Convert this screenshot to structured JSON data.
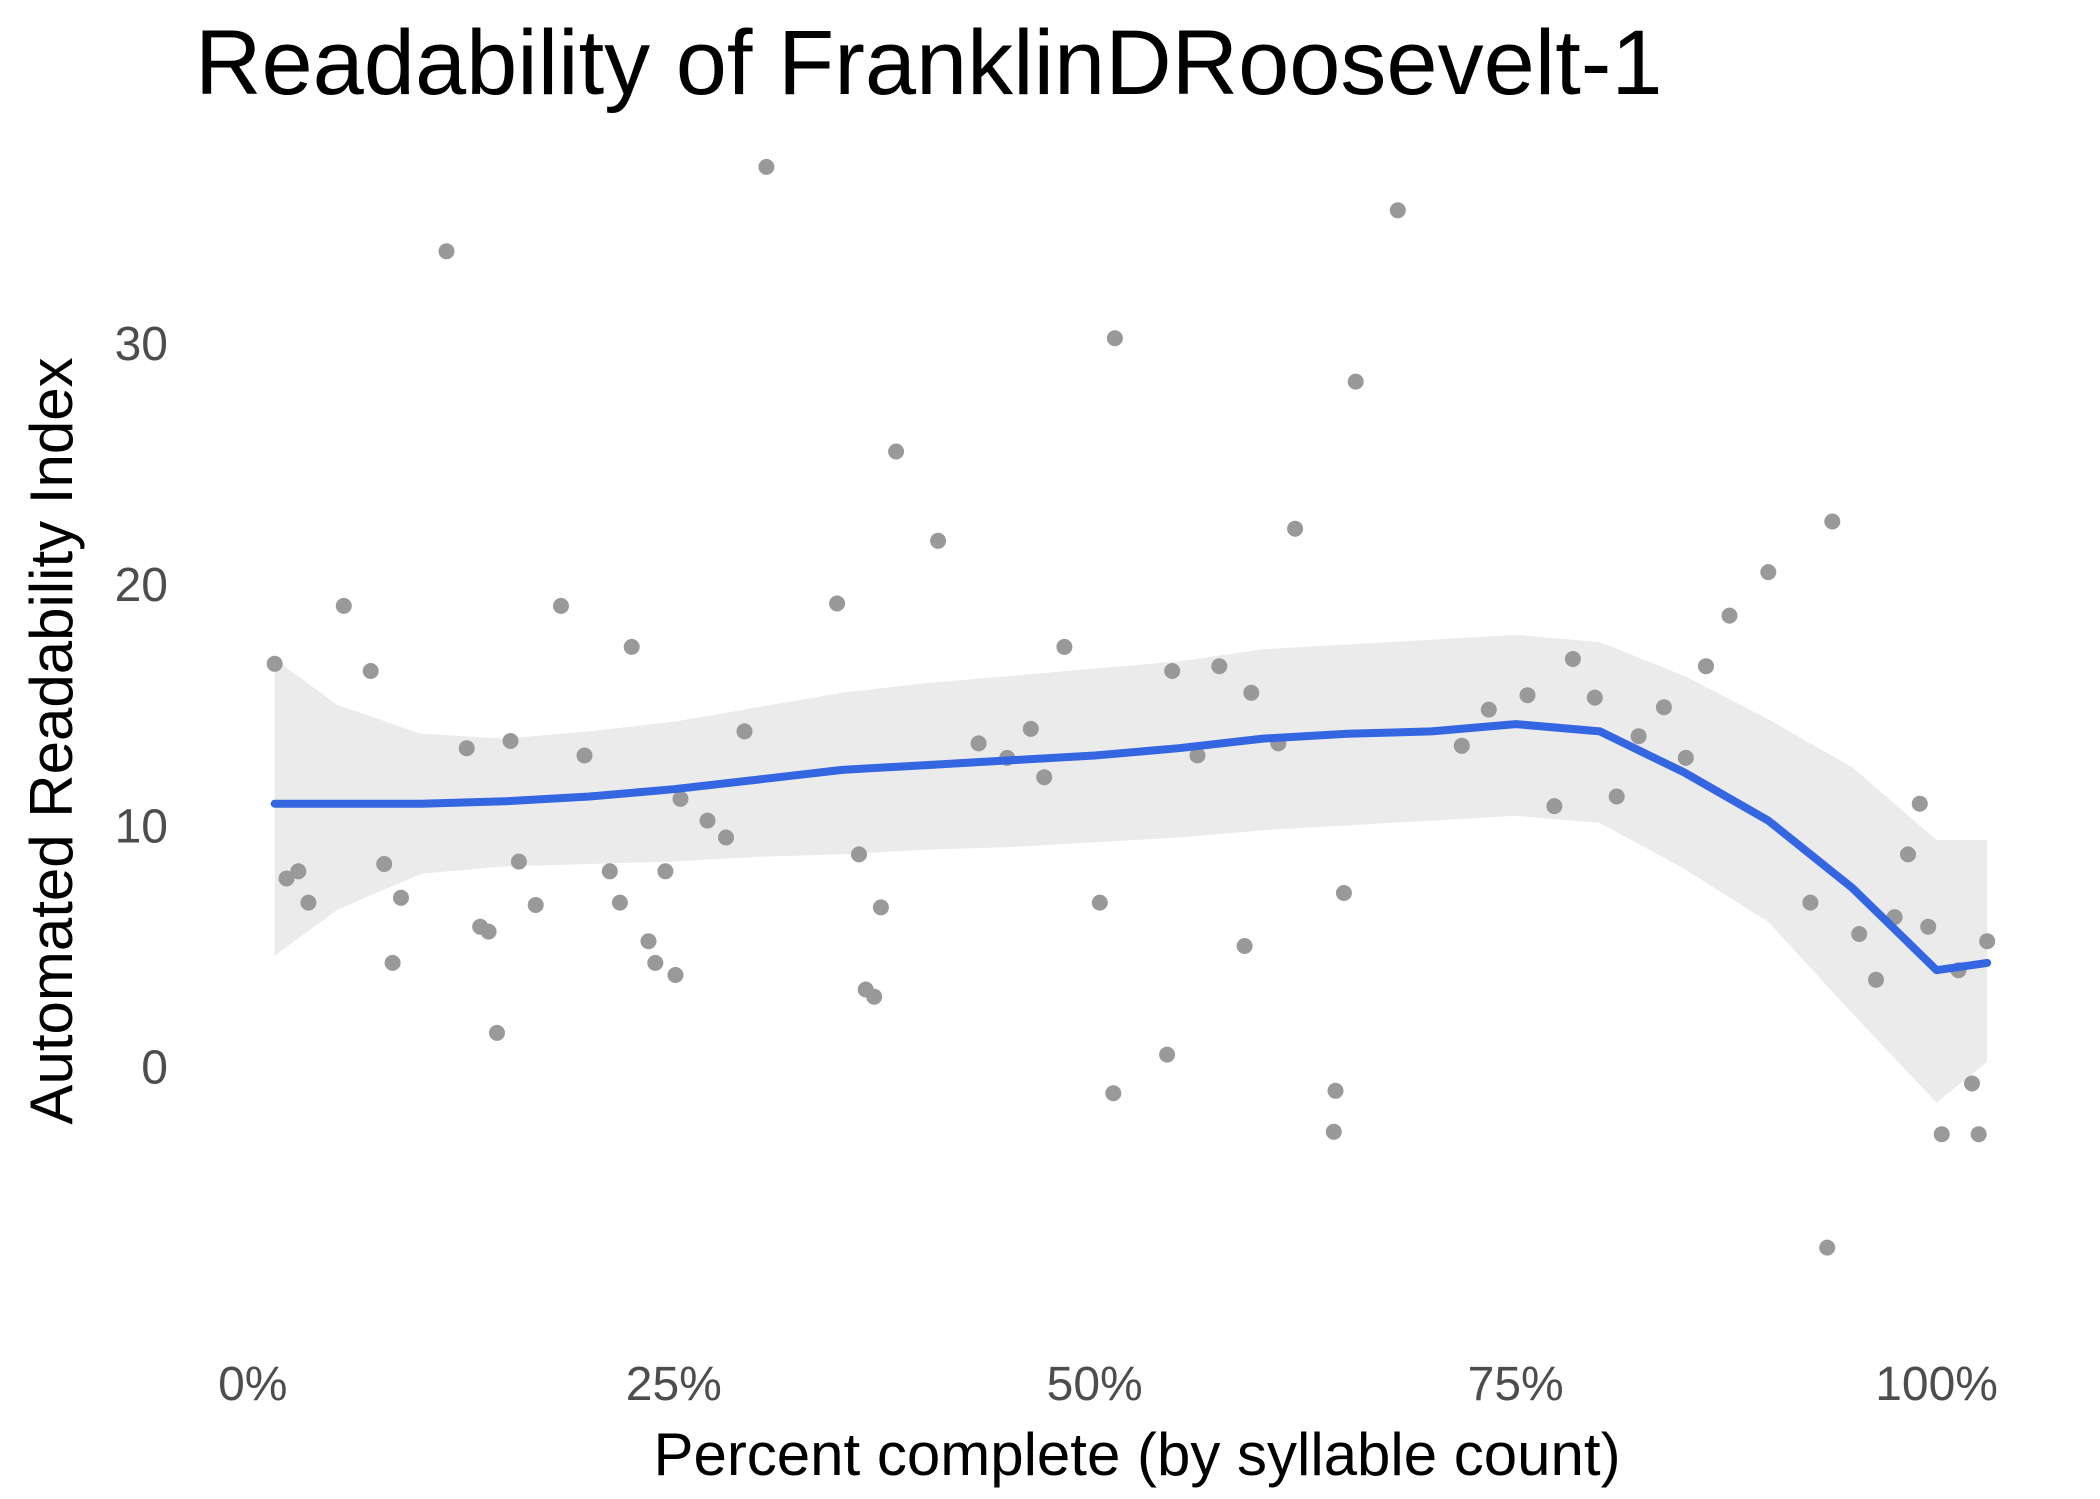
{
  "chart_data": {
    "type": "scatter",
    "title": "Readability of FranklinDRoosevelt-1",
    "xlabel": "Percent complete (by syllable count)",
    "ylabel": "Automated Readability Index",
    "xlim": [
      -0.01,
      1.04
    ],
    "ylim": [
      -11,
      38
    ],
    "grid": false,
    "x_ticks": [
      {
        "value": 0,
        "label": "0%"
      },
      {
        "value": 0.25,
        "label": "25%"
      },
      {
        "value": 0.5,
        "label": "50%"
      },
      {
        "value": 0.75,
        "label": "75%"
      },
      {
        "value": 1,
        "label": "100%"
      }
    ],
    "y_ticks": [
      {
        "value": 0,
        "label": "0"
      },
      {
        "value": 10,
        "label": "10"
      },
      {
        "value": 20,
        "label": "20"
      },
      {
        "value": 30,
        "label": "30"
      }
    ],
    "colors": {
      "points": "#999999",
      "smooth_line": "#3366e0",
      "confidence_band": "#ebebeb"
    },
    "series": [
      {
        "type": "scatter",
        "x": [
          0.013,
          0.02,
          0.027,
          0.033,
          0.054,
          0.07,
          0.078,
          0.083,
          0.088,
          0.115,
          0.127,
          0.135,
          0.14,
          0.145,
          0.153,
          0.158,
          0.168,
          0.183,
          0.197,
          0.212,
          0.218,
          0.225,
          0.235,
          0.239,
          0.245,
          0.251,
          0.254,
          0.27,
          0.281,
          0.292,
          0.305,
          0.347,
          0.36,
          0.364,
          0.369,
          0.373,
          0.382,
          0.407,
          0.431,
          0.448,
          0.462,
          0.47,
          0.482,
          0.503,
          0.511,
          0.512,
          0.543,
          0.546,
          0.561,
          0.574,
          0.589,
          0.593,
          0.609,
          0.619,
          0.642,
          0.643,
          0.648,
          0.655,
          0.68,
          0.718,
          0.734,
          0.757,
          0.773,
          0.784,
          0.797,
          0.81,
          0.823,
          0.838,
          0.851,
          0.863,
          0.877,
          0.9,
          0.925,
          0.935,
          0.938,
          0.954,
          0.964,
          0.975,
          0.983,
          0.99,
          0.995,
          1.003,
          1.013,
          1.021,
          1.025,
          1.03
        ],
        "y": [
          16.7,
          7.8,
          8.1,
          6.8,
          19.1,
          16.4,
          8.4,
          4.3,
          7.0,
          33.8,
          13.2,
          5.8,
          5.6,
          1.4,
          13.5,
          8.5,
          6.7,
          19.1,
          12.9,
          8.1,
          6.8,
          17.4,
          5.2,
          4.3,
          8.1,
          3.8,
          11.1,
          10.2,
          9.5,
          13.9,
          37.3,
          19.2,
          8.8,
          3.2,
          2.9,
          6.6,
          25.5,
          21.8,
          13.4,
          12.8,
          14.0,
          12.0,
          17.4,
          6.8,
          -1.1,
          30.2,
          0.5,
          16.4,
          12.9,
          16.6,
          5.0,
          15.5,
          13.4,
          22.3,
          -2.7,
          -1.0,
          7.2,
          28.4,
          35.5,
          13.3,
          14.8,
          15.4,
          10.8,
          16.9,
          15.3,
          11.2,
          13.7,
          14.9,
          12.8,
          16.6,
          18.7,
          20.5,
          6.8,
          -7.5,
          22.6,
          5.5,
          3.6,
          6.2,
          8.8,
          10.9,
          5.8,
          -2.8,
          4.0,
          -0.7,
          -2.8,
          5.2
        ]
      },
      {
        "type": "line",
        "name": "smooth",
        "x": [
          0.013,
          0.05,
          0.1,
          0.15,
          0.2,
          0.25,
          0.3,
          0.35,
          0.4,
          0.45,
          0.5,
          0.55,
          0.6,
          0.65,
          0.7,
          0.75,
          0.8,
          0.85,
          0.9,
          0.95,
          1.0,
          1.03
        ],
        "y": [
          10.9,
          10.9,
          10.9,
          11.0,
          11.2,
          11.5,
          11.9,
          12.3,
          12.5,
          12.7,
          12.9,
          13.2,
          13.6,
          13.8,
          13.9,
          14.2,
          13.9,
          12.2,
          10.2,
          7.4,
          4.0,
          4.3
        ],
        "lower": [
          4.6,
          6.5,
          8.0,
          8.3,
          8.4,
          8.5,
          8.7,
          8.8,
          9.0,
          9.1,
          9.3,
          9.5,
          9.8,
          10.0,
          10.2,
          10.4,
          10.1,
          8.2,
          6.0,
          2.2,
          -1.5,
          0.2
        ],
        "upper": [
          16.9,
          15.0,
          13.8,
          13.6,
          13.9,
          14.3,
          14.9,
          15.5,
          15.9,
          16.2,
          16.5,
          16.8,
          17.3,
          17.5,
          17.7,
          17.9,
          17.6,
          16.2,
          14.4,
          12.4,
          9.4,
          9.4
        ]
      }
    ]
  }
}
